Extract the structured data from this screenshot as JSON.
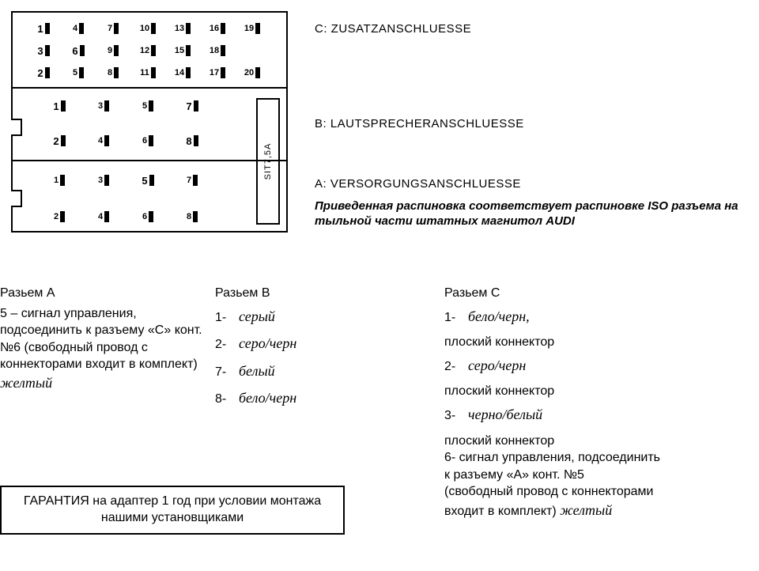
{
  "diagram": {
    "border_color": "#000000",
    "background": "#ffffff",
    "fuse_label": "SIT7,5A",
    "sections": {
      "C": {
        "rows": [
          [
            {
              "n": "1",
              "bold": true
            },
            {
              "n": "4"
            },
            {
              "n": "7"
            },
            {
              "n": "10"
            },
            {
              "n": "13"
            },
            {
              "n": "16"
            },
            {
              "n": "19"
            }
          ],
          [
            {
              "n": "3",
              "bold": true
            },
            {
              "n": "6",
              "bold": true
            },
            {
              "n": "9"
            },
            {
              "n": "12"
            },
            {
              "n": "15"
            },
            {
              "n": "18"
            }
          ],
          [
            {
              "n": "2",
              "bold": true
            },
            {
              "n": "5"
            },
            {
              "n": "8"
            },
            {
              "n": "11"
            },
            {
              "n": "14"
            },
            {
              "n": "17"
            },
            {
              "n": "20"
            }
          ]
        ]
      },
      "B": {
        "rows": [
          [
            {
              "n": "1",
              "bold": true
            },
            {
              "n": "3"
            },
            {
              "n": "5"
            },
            {
              "n": "7",
              "bold": true
            }
          ],
          [
            {
              "n": "2",
              "bold": true
            },
            {
              "n": "4"
            },
            {
              "n": "6"
            },
            {
              "n": "8",
              "bold": true
            }
          ]
        ]
      },
      "A": {
        "rows": [
          [
            {
              "n": "1"
            },
            {
              "n": "3"
            },
            {
              "n": "5",
              "bold": true
            },
            {
              "n": "7"
            }
          ],
          [
            {
              "n": "2"
            },
            {
              "n": "4"
            },
            {
              "n": "6"
            },
            {
              "n": "8"
            }
          ]
        ]
      }
    }
  },
  "labels": {
    "C": "C: ZUSATZANSCHLUESSE",
    "B": "B: LAUTSPRECHERANSCHLUESSE",
    "A": "A: VERSORGUNGSANSCHLUESSE",
    "note": "Приведенная распиновка соответствует распиновке ISO разъема на тыльной части штатных магнитол AUDI"
  },
  "columns": {
    "A": {
      "title": "Разьем A",
      "body": "5 – сигнал управления, подсоединить к разъему «С» конт. №6 (свободный провод с коннекторами входит в комплект)",
      "hand": "желтый"
    },
    "B": {
      "title": "Разьем B",
      "pins": [
        {
          "n": "1-",
          "hand": "серый"
        },
        {
          "n": "2-",
          "hand": "серо/черн"
        },
        {
          "n": "7-",
          "hand": "белый"
        },
        {
          "n": "8-",
          "hand": "бело/черн"
        }
      ]
    },
    "C": {
      "title": "Разьем C",
      "lines": [
        {
          "n": "1-",
          "hand": "бело/черн,",
          "tail": ""
        },
        {
          "plain": "плоский коннектор"
        },
        {
          "n": "2-",
          "hand": "серо/черн",
          "tail": ""
        },
        {
          "plain": " плоский коннектор"
        },
        {
          "n": "3-",
          "hand": "черно/белый",
          "tail": ""
        },
        {
          "plain": "плоский коннектор"
        },
        {
          "plain": "6- сигнал управления, подсоединить"
        },
        {
          "plain": "к разъему «А» конт. №5"
        },
        {
          "plain": "(свободный провод с коннекторами"
        },
        {
          "plain_with_hand": "входит в комплект)",
          "hand": "желтый"
        }
      ]
    }
  },
  "warranty": "ГАРАНТИЯ на адаптер 1 год при условии монтажа нашими установщиками",
  "style": {
    "font_color": "#000000",
    "hand_color": "#000000",
    "label_fontsize": 15,
    "body_fontsize": 16,
    "hand_fontsize": 18
  }
}
